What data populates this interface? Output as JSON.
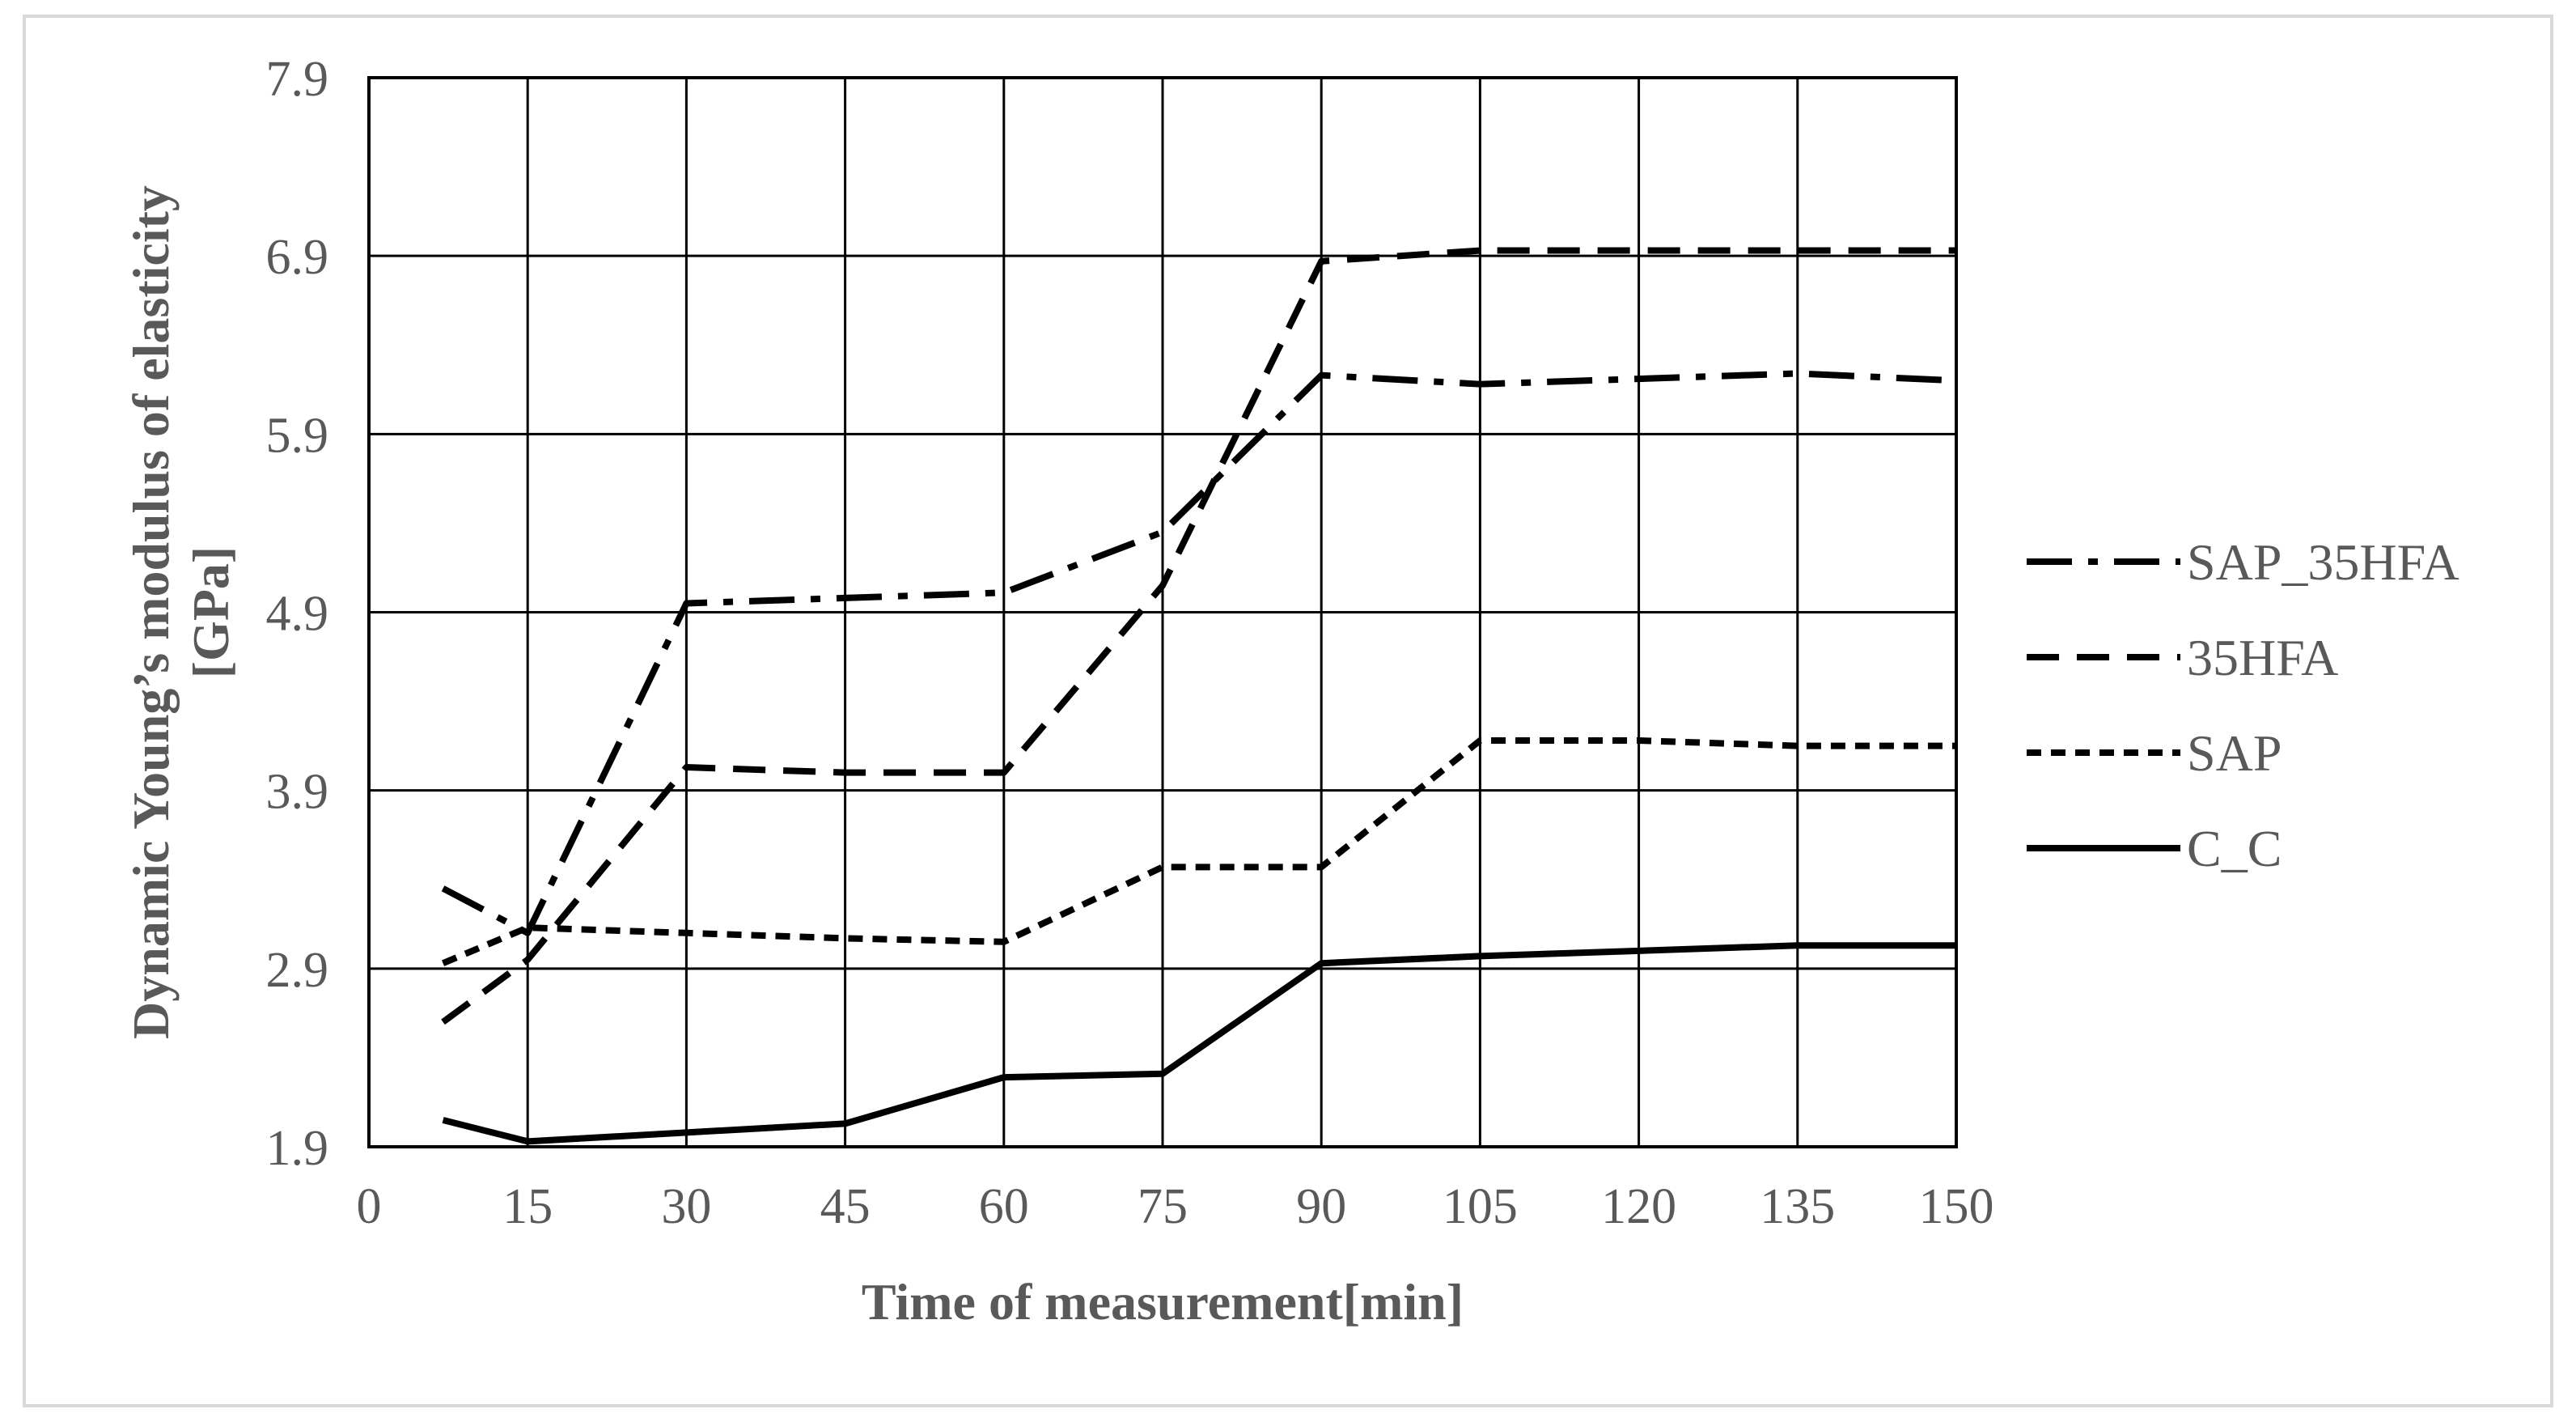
{
  "chart_data": {
    "type": "line",
    "title": "",
    "xlabel": "Time of measurement[min]",
    "ylabel": [
      "Dynamic Young’s modulus of elasticity",
      "[GPa]"
    ],
    "xlim": [
      0,
      150
    ],
    "ylim": [
      1.9,
      7.9
    ],
    "xticks": [
      0,
      15,
      30,
      45,
      60,
      75,
      90,
      105,
      120,
      135,
      150
    ],
    "yticks": [
      1.9,
      2.9,
      3.9,
      4.9,
      5.9,
      6.9,
      7.9
    ],
    "ytick_labels": [
      "1.9",
      "2.9",
      "3.9",
      "4.9",
      "5.9",
      "6.9",
      "7.9"
    ],
    "grid": true,
    "legend_position": "right",
    "x": [
      7,
      15,
      30,
      45,
      60,
      75,
      90,
      105,
      120,
      135,
      150
    ],
    "series": [
      {
        "name": "SAP_35HFA",
        "dash": "dashdot",
        "color": "#000000",
        "values": [
          3.35,
          3.1,
          4.95,
          4.98,
          5.01,
          5.35,
          6.23,
          6.18,
          6.21,
          6.24,
          6.2
        ]
      },
      {
        "name": "35HFA",
        "dash": "dashed",
        "color": "#000000",
        "values": [
          2.6,
          2.95,
          4.03,
          4.0,
          4.0,
          5.05,
          6.87,
          6.93,
          6.93,
          6.93,
          6.93
        ]
      },
      {
        "name": "SAP",
        "dash": "dotted",
        "color": "#000000",
        "values": [
          2.93,
          3.13,
          3.1,
          3.07,
          3.05,
          3.47,
          3.47,
          4.18,
          4.18,
          4.15,
          4.15
        ]
      },
      {
        "name": "C_C",
        "dash": "solid",
        "color": "#000000",
        "values": [
          2.05,
          1.93,
          1.98,
          2.03,
          2.29,
          2.31,
          2.93,
          2.97,
          3.0,
          3.03,
          3.03
        ]
      }
    ]
  }
}
